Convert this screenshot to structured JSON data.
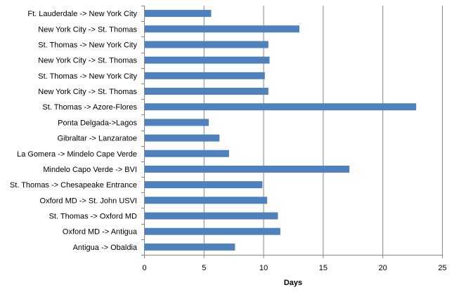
{
  "chart_data": {
    "type": "bar",
    "orientation": "horizontal",
    "categories": [
      "Ft. Lauderdale -> New York City",
      "New York City -> St. Thomas",
      "St. Thomas  -> New York City",
      "New York City ->  St. Thomas",
      "St. Thomas  -> New York City",
      "New York City -> St. Thomas",
      "St. Thomas  -> Azore-Flores",
      "Ponta Delgada->Lagos",
      "Gibraltar -> Lanzaratoe",
      "La Gomera -> Mindelo Cape Verde",
      "Mindelo Capo Verde -> BVI",
      "St. Thomas -> Chesapeake Entrance",
      "Oxford MD -> St. John USVI",
      "St. Thomas  -> Oxford MD",
      "Oxford MD -> Antigua",
      "Antigua -> Obaldia"
    ],
    "values": [
      5.6,
      13.0,
      10.4,
      10.5,
      10.1,
      10.4,
      22.8,
      5.4,
      6.3,
      7.1,
      17.2,
      9.9,
      10.3,
      11.2,
      11.4,
      7.6
    ],
    "xlabel": "Days",
    "ylabel": "",
    "xlim": [
      0,
      25
    ],
    "xticks": [
      0,
      5,
      10,
      15,
      20,
      25
    ],
    "grid": true,
    "legend": "none",
    "bar_color": "#4F81BD"
  }
}
